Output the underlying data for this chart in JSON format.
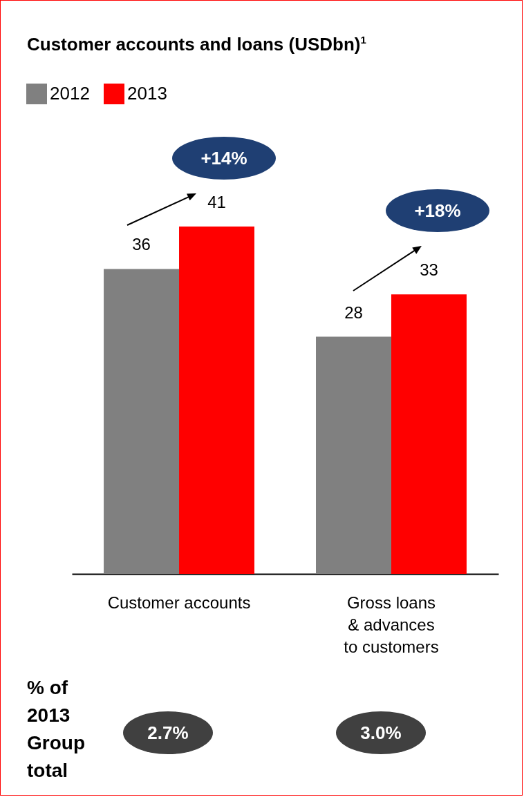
{
  "chart_data": {
    "type": "bar",
    "title": "Customer accounts and loans (USDbn)$^{1}$",
    "categories": [
      "Customer accounts",
      "Gross loans\n& advances\nto customers"
    ],
    "series": [
      {
        "name": "2012",
        "color": "#808080",
        "values": [
          36,
          28
        ]
      },
      {
        "name": "2013",
        "color": "#ff0000",
        "values": [
          41,
          33
        ]
      }
    ],
    "data_labels": true,
    "legend": "top left",
    "annotations": [
      "+14%",
      "+18%",
      "% of 2013 Group total",
      "2.7%",
      "3.0%"
    ]
  }
}
